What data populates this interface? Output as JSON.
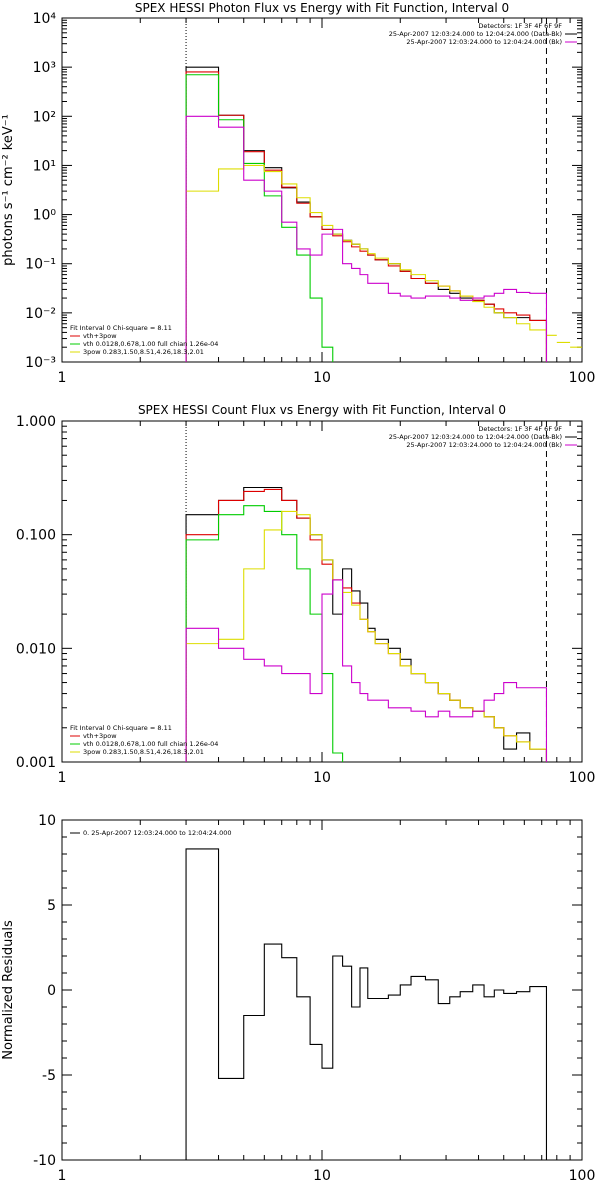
{
  "chart_data": [
    {
      "type": "line",
      "title": "SPEX HESSI Photon Flux vs Energy with Fit Function, Interval 0",
      "xlabel": "",
      "ylabel": "photons s⁻¹ cm⁻² keV⁻¹",
      "xscale": "log",
      "yscale": "log",
      "xlim": [
        1,
        100
      ],
      "ylim": [
        0.001,
        10000
      ],
      "x_ticks": [
        1,
        10,
        100
      ],
      "x_tick_labels": [
        "1",
        "10",
        "100"
      ],
      "y_ticks": [
        0.001,
        0.01,
        0.1,
        1,
        10,
        100,
        1000,
        10000
      ],
      "y_tick_labels": [
        "10⁻³",
        "10⁻²",
        "10⁻¹",
        "10⁰",
        "10¹",
        "10²",
        "10³",
        "10⁴"
      ],
      "grid": false,
      "vlines": [
        {
          "x": 3,
          "style": "dotted"
        },
        {
          "x": 73,
          "style": "dashed"
        }
      ],
      "legend_top_right": [
        {
          "text": "Detectors: 1F 3F 4F 6F 9F",
          "color": ""
        },
        {
          "text": "25-Apr-2007 12:03:24.000 to 12:04:24.000 (Data-Bk)",
          "color": "#000000"
        },
        {
          "text": "25-Apr-2007 12:03:24.000 to 12:04:24.000 (Bk)",
          "color": "#cc00cc"
        }
      ],
      "legend_bottom_left": [
        {
          "text": "Fit Interval 0   Chi-square = 8.11",
          "color": ""
        },
        {
          "text": "vth+3pow",
          "color": "#dd0000"
        },
        {
          "text": "vth 0.0128,0.678,1.00  full chian 1.26e-04",
          "color": "#00cc00"
        },
        {
          "text": "3pow 0.283,1.50,8.51,4.26,18.3,2.01",
          "color": "#dddd00"
        }
      ],
      "edges": [
        3,
        4,
        5,
        6,
        7,
        8,
        9,
        10,
        11,
        12,
        13,
        14,
        15,
        16,
        18,
        20,
        22,
        25,
        28,
        31,
        34,
        38,
        42,
        46,
        50,
        56,
        63,
        73
      ],
      "series": [
        {
          "color": "#000000",
          "values": [
            1000,
            105,
            20,
            9,
            3.5,
            1.8,
            0.9,
            0.5,
            0.4,
            0.3,
            0.25,
            0.2,
            0.15,
            0.12,
            0.1,
            0.07,
            0.05,
            0.04,
            0.03,
            0.025,
            0.02,
            0.018,
            0.015,
            0.01,
            0.008,
            0.008,
            0.007
          ]
        },
        {
          "color": "#dd0000",
          "values": [
            800,
            105,
            19,
            8,
            3.6,
            1.7,
            0.9,
            0.5,
            0.37,
            0.28,
            0.22,
            0.18,
            0.15,
            0.12,
            0.09,
            0.07,
            0.05,
            0.04,
            0.035,
            0.028,
            0.022,
            0.018,
            0.015,
            0.012,
            0.01,
            0.009,
            0.007
          ]
        },
        {
          "color": "#00cc00",
          "values": [
            700,
            85,
            11,
            2.4,
            0.55,
            0.15,
            0.02,
            0.002,
            0.0005
          ]
        },
        {
          "color": "#dddd00",
          "values": [
            3,
            8.5,
            10,
            7.5,
            4.2,
            2.2,
            1.1,
            0.6,
            0.4,
            0.3,
            0.25,
            0.2,
            0.16,
            0.13,
            0.1,
            0.075,
            0.06,
            0.045,
            0.035,
            0.028,
            0.022,
            0.017,
            0.013,
            0.01,
            0.008,
            0.006,
            0.0045
          ],
          "tail": [
            [
              73,
              80,
              0.0035
            ],
            [
              80,
              90,
              0.0025
            ],
            [
              90,
              100,
              0.002
            ]
          ]
        },
        {
          "color": "#cc00cc",
          "values": [
            100,
            60,
            5,
            3,
            0.7,
            0.2,
            0.15,
            0.4,
            0.5,
            0.1,
            0.08,
            0.06,
            0.04,
            0.04,
            0.025,
            0.022,
            0.02,
            0.022,
            0.022,
            0.02,
            0.018,
            0.02,
            0.022,
            0.025,
            0.03,
            0.026,
            0.025
          ]
        }
      ]
    },
    {
      "type": "line",
      "title": "SPEX HESSI Count Flux vs Energy with Fit Function, Interval 0",
      "xlabel": "",
      "ylabel": "",
      "xscale": "log",
      "yscale": "log",
      "xlim": [
        1,
        100
      ],
      "ylim": [
        0.001,
        1
      ],
      "x_ticks": [
        1,
        10,
        100
      ],
      "x_tick_labels": [
        "1",
        "10",
        "100"
      ],
      "y_ticks": [
        0.001,
        0.01,
        0.1,
        1
      ],
      "y_tick_labels": [
        "0.001",
        "0.010",
        "0.100",
        "1.000"
      ],
      "grid": false,
      "vlines": [
        {
          "x": 3,
          "style": "dotted"
        },
        {
          "x": 73,
          "style": "dashed"
        }
      ],
      "legend_top_right": [
        {
          "text": "Detectors: 1F 3F 4F 6F 9F",
          "color": ""
        },
        {
          "text": "25-Apr-2007 12:03:24.000 to 12:04:24.000 (Data-Bk)",
          "color": "#000000"
        },
        {
          "text": "25-Apr-2007 12:03:24.000 to 12:04:24.000 (Bk)",
          "color": "#cc00cc"
        }
      ],
      "legend_bottom_left": [
        {
          "text": "Fit Interval 0   Chi-square = 8.11",
          "color": ""
        },
        {
          "text": "vth+3pow",
          "color": "#dd0000"
        },
        {
          "text": "vth 0.0128,0.678,1.00  full chian 1.26e-04",
          "color": "#00cc00"
        },
        {
          "text": "3pow 0.283,1.50,8.51,4.26,18.3,2.01",
          "color": "#dddd00"
        }
      ],
      "edges": [
        3,
        4,
        5,
        6,
        7,
        8,
        9,
        10,
        11,
        12,
        13,
        14,
        15,
        16,
        18,
        20,
        22,
        25,
        28,
        31,
        34,
        38,
        42,
        46,
        50,
        56,
        63,
        73
      ],
      "series": [
        {
          "color": "#000000",
          "values": [
            0.15,
            0.2,
            0.26,
            0.26,
            0.2,
            0.14,
            0.1,
            0.06,
            0.02,
            0.05,
            0.032,
            0.025,
            0.015,
            0.012,
            0.01,
            0.008,
            0.006,
            0.005,
            0.004,
            0.0035,
            0.003,
            0.0028,
            0.0025,
            0.002,
            0.0013,
            0.0018,
            0.0013
          ]
        },
        {
          "color": "#dd0000",
          "values": [
            0.1,
            0.2,
            0.24,
            0.25,
            0.2,
            0.14,
            0.09,
            0.055,
            0.04,
            0.034,
            0.025,
            0.018,
            0.014,
            0.011,
            0.009,
            0.007,
            0.006,
            0.005,
            0.004,
            0.0035,
            0.003,
            0.0028,
            0.0025,
            0.002,
            0.0017,
            0.0015,
            0.0013
          ]
        },
        {
          "color": "#00cc00",
          "values": [
            0.09,
            0.15,
            0.18,
            0.16,
            0.1,
            0.05,
            0.02,
            0.006,
            0.0012
          ]
        },
        {
          "color": "#dddd00",
          "values": [
            0.011,
            0.012,
            0.05,
            0.11,
            0.16,
            0.15,
            0.1,
            0.06,
            0.04,
            0.031,
            0.024,
            0.018,
            0.014,
            0.011,
            0.009,
            0.007,
            0.006,
            0.005,
            0.004,
            0.0035,
            0.003,
            0.0028,
            0.0025,
            0.002,
            0.0017,
            0.0015,
            0.0013
          ]
        },
        {
          "color": "#cc00cc",
          "values": [
            0.015,
            0.01,
            0.008,
            0.007,
            0.006,
            0.006,
            0.004,
            0.03,
            0.04,
            0.007,
            0.005,
            0.004,
            0.0035,
            0.0035,
            0.003,
            0.003,
            0.0028,
            0.0025,
            0.0028,
            0.0025,
            0.0025,
            0.0028,
            0.0035,
            0.004,
            0.005,
            0.0045,
            0.0045
          ]
        }
      ]
    },
    {
      "type": "line",
      "title": "",
      "xlabel": "",
      "ylabel": "Normalized Residuals",
      "xscale": "log",
      "yscale": "linear",
      "xlim": [
        1,
        100
      ],
      "ylim": [
        -10,
        10
      ],
      "x_ticks": [
        1,
        10,
        100
      ],
      "x_tick_labels": [
        "1",
        "10",
        "100"
      ],
      "y_ticks": [
        -10,
        -5,
        0,
        5,
        10
      ],
      "y_tick_labels": [
        "-10",
        "-5",
        "0",
        "5",
        "10"
      ],
      "grid": false,
      "vlines": [],
      "legend_top_left": [
        {
          "text": "0. 25-Apr-2007 12:03:24.000 to 12:04:24.000",
          "color": "#000000"
        }
      ],
      "edges": [
        3,
        4,
        5,
        6,
        7,
        8,
        9,
        10,
        11,
        12,
        13,
        14,
        15,
        16,
        18,
        20,
        22,
        25,
        28,
        31,
        34,
        38,
        42,
        46,
        50,
        56,
        63,
        73
      ],
      "series": [
        {
          "color": "#000000",
          "values": [
            8.3,
            -5.2,
            -1.5,
            2.7,
            1.9,
            -0.4,
            -3.2,
            -4.6,
            2.0,
            1.4,
            -1.0,
            1.3,
            -0.5,
            -0.5,
            -0.3,
            0.3,
            0.8,
            0.6,
            -0.8,
            -0.4,
            -0.1,
            0.3,
            -0.4,
            0.0,
            -0.2,
            -0.1,
            0.2
          ]
        }
      ]
    }
  ]
}
